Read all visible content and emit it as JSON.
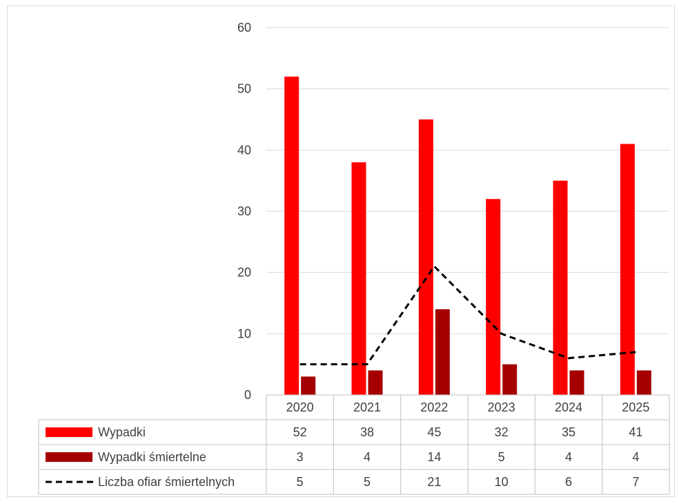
{
  "chart_data": {
    "type": "bar",
    "categories": [
      "2020",
      "2021",
      "2022",
      "2023",
      "2024",
      "2025"
    ],
    "series": [
      {
        "name": "Wypadki",
        "kind": "bar",
        "color": "#ff0000",
        "values": [
          52,
          38,
          45,
          32,
          35,
          41
        ]
      },
      {
        "name": "Wypadki śmiertelne",
        "kind": "bar",
        "color": "#a50000",
        "values": [
          3,
          4,
          14,
          5,
          4,
          4
        ]
      },
      {
        "name": "Liczba ofiar śmiertelnych",
        "kind": "line",
        "line_style": "dashed",
        "color": "#000000",
        "values": [
          5,
          5,
          21,
          10,
          6,
          7
        ]
      }
    ],
    "y_ticks": [
      "0",
      "10",
      "20",
      "30",
      "40",
      "50",
      "60"
    ],
    "ylim": [
      0,
      60
    ],
    "grid": true,
    "legend": "data-table",
    "data_table": true
  }
}
